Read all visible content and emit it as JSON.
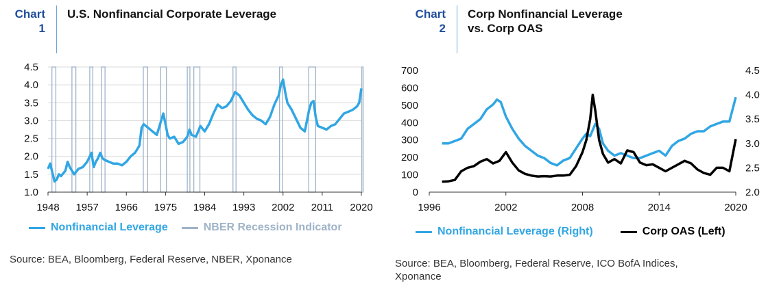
{
  "chart1": {
    "label_line1": "Chart",
    "label_line2": "1",
    "title": "U.S. Nonfinancial Corporate Leverage",
    "legend": [
      {
        "name": "Nonfinancial Leverage",
        "color": "#31a6e4"
      },
      {
        "name": "NBER Recession Indicator",
        "color": "#9fb3c8"
      }
    ],
    "source": "Source: BEA, Bloomberg, Federal Reserve, NBER, Xponance"
  },
  "chart2": {
    "label_line1": "Chart",
    "label_line2": "2",
    "title_line1": "Corp Nonfinancial Leverage",
    "title_line2": "vs. Corp OAS",
    "legend": [
      {
        "name": "Nonfinancial Leverage (Right)",
        "color": "#31a6e4"
      },
      {
        "name": "Corp OAS (Left)",
        "color": "#000000"
      }
    ],
    "source_line1": "Source: BEA, Bloomberg, Federal Reserve, ICO BofA Indices,",
    "source_line2": "Xponance"
  },
  "chart_data": [
    {
      "type": "line",
      "title": "U.S. Nonfinancial Corporate Leverage",
      "xlim": [
        1948,
        2020
      ],
      "xticks": [
        1948,
        1957,
        1966,
        1975,
        1984,
        1993,
        2002,
        2011,
        2020
      ],
      "ylim": [
        1.0,
        4.5
      ],
      "yticks": [
        1.0,
        1.5,
        2.0,
        2.5,
        3.0,
        3.5,
        4.0,
        4.5
      ],
      "grid": true,
      "legend_position": "bottom",
      "recessions": [
        [
          1948.9,
          1949.8
        ],
        [
          1953.5,
          1954.4
        ],
        [
          1957.6,
          1958.3
        ],
        [
          1960.3,
          1961.1
        ],
        [
          1969.9,
          1970.9
        ],
        [
          1973.9,
          1975.2
        ],
        [
          1980.0,
          1980.6
        ],
        [
          1981.5,
          1982.9
        ],
        [
          1990.5,
          1991.2
        ],
        [
          2001.2,
          2001.9
        ],
        [
          2007.9,
          2009.5
        ],
        [
          2020.1,
          2020.4
        ]
      ],
      "series": [
        {
          "name": "Nonfinancial Leverage",
          "color": "#31a6e4",
          "x": [
            1948,
            1948.5,
            1949,
            1949.5,
            1950,
            1950.5,
            1951,
            1952,
            1952.5,
            1953,
            1953.5,
            1954,
            1955,
            1956,
            1957,
            1958,
            1958.5,
            1959,
            1959.5,
            1960,
            1960.5,
            1961,
            1962,
            1963,
            1964,
            1965,
            1966,
            1967,
            1968,
            1969,
            1969.5,
            1970,
            1970.5,
            1971,
            1972,
            1973,
            1974,
            1974.5,
            1975,
            1975.5,
            1976,
            1977,
            1978,
            1979,
            1980,
            1980.5,
            1981,
            1982,
            1982.5,
            1983,
            1984,
            1985,
            1986,
            1987,
            1988,
            1989,
            1990,
            1991,
            1992,
            1993,
            1994,
            1995,
            1996,
            1997,
            1998,
            1999,
            2000,
            2001,
            2001.5,
            2002,
            2002.5,
            2003,
            2004,
            2005,
            2006,
            2007,
            2008,
            2008.5,
            2009,
            2009.5,
            2010,
            2011,
            2012,
            2013,
            2014,
            2015,
            2016,
            2017,
            2018,
            2019,
            2019.5,
            2020
          ],
          "y": [
            1.65,
            1.8,
            1.55,
            1.3,
            1.35,
            1.5,
            1.45,
            1.6,
            1.85,
            1.7,
            1.6,
            1.5,
            1.65,
            1.7,
            1.85,
            2.1,
            1.7,
            1.85,
            1.95,
            2.1,
            1.95,
            1.9,
            1.85,
            1.8,
            1.8,
            1.75,
            1.85,
            2.0,
            2.1,
            2.3,
            2.8,
            2.9,
            2.85,
            2.8,
            2.7,
            2.6,
            3.0,
            3.2,
            2.9,
            2.6,
            2.5,
            2.55,
            2.35,
            2.4,
            2.55,
            2.75,
            2.6,
            2.55,
            2.7,
            2.85,
            2.7,
            2.9,
            3.2,
            3.45,
            3.35,
            3.4,
            3.55,
            3.8,
            3.7,
            3.5,
            3.3,
            3.15,
            3.05,
            3.0,
            2.9,
            3.1,
            3.45,
            3.7,
            4.0,
            4.15,
            3.8,
            3.5,
            3.3,
            3.05,
            2.8,
            2.7,
            3.3,
            3.5,
            3.55,
            3.1,
            2.85,
            2.8,
            2.75,
            2.85,
            2.9,
            3.05,
            3.2,
            3.25,
            3.3,
            3.4,
            3.5,
            3.9
          ]
        }
      ]
    },
    {
      "type": "line",
      "title": "Corp Nonfinancial Leverage vs. Corp OAS",
      "xlim": [
        1996,
        2020
      ],
      "xticks": [
        1996,
        2002,
        2008,
        2014,
        2020
      ],
      "ylim_left": [
        0,
        700
      ],
      "yticks_left": [
        0,
        100,
        200,
        300,
        400,
        500,
        600,
        700
      ],
      "ylim_right": [
        2.0,
        4.5
      ],
      "yticks_right": [
        2.0,
        2.5,
        3.0,
        3.5,
        4.0,
        4.5
      ],
      "grid": false,
      "legend_position": "bottom",
      "series": [
        {
          "name": "Nonfinancial Leverage (Right)",
          "axis": "right",
          "color": "#31a6e4",
          "x": [
            1997,
            1997.5,
            1998,
            1998.5,
            1999,
            1999.5,
            2000,
            2000.5,
            2001,
            2001.3,
            2001.6,
            2002,
            2002.5,
            2003,
            2003.5,
            2004,
            2004.5,
            2005,
            2005.5,
            2006,
            2006.5,
            2007,
            2007.5,
            2008,
            2008.3,
            2008.6,
            2009,
            2009.3,
            2009.6,
            2010,
            2010.5,
            2011,
            2011.5,
            2012,
            2012.5,
            2013,
            2013.5,
            2014,
            2014.5,
            2015,
            2015.5,
            2016,
            2016.5,
            2017,
            2017.5,
            2018,
            2018.5,
            2019,
            2019.5,
            2020
          ],
          "y": [
            3.0,
            3.0,
            3.05,
            3.1,
            3.3,
            3.4,
            3.5,
            3.7,
            3.8,
            3.9,
            3.85,
            3.55,
            3.3,
            3.1,
            2.95,
            2.85,
            2.75,
            2.7,
            2.6,
            2.55,
            2.65,
            2.7,
            2.9,
            3.1,
            3.2,
            3.15,
            3.4,
            3.3,
            3.0,
            2.85,
            2.75,
            2.8,
            2.75,
            2.7,
            2.7,
            2.75,
            2.8,
            2.85,
            2.75,
            2.95,
            3.05,
            3.1,
            3.2,
            3.25,
            3.25,
            3.35,
            3.4,
            3.45,
            3.45,
            3.95
          ]
        },
        {
          "name": "Corp OAS (Left)",
          "axis": "left",
          "color": "#000000",
          "x": [
            1997,
            1997.5,
            1998,
            1998.5,
            1999,
            1999.5,
            2000,
            2000.5,
            2001,
            2001.5,
            2002,
            2002.5,
            2003,
            2003.5,
            2004,
            2004.5,
            2005,
            2005.5,
            2006,
            2006.5,
            2007,
            2007.5,
            2008,
            2008.3,
            2008.6,
            2008.8,
            2009,
            2009.3,
            2009.6,
            2010,
            2010.5,
            2011,
            2011.5,
            2012,
            2012.5,
            2013,
            2013.5,
            2014,
            2014.5,
            2015,
            2015.5,
            2016,
            2016.5,
            2017,
            2017.5,
            2018,
            2018.5,
            2019,
            2019.5,
            2020
          ],
          "y": [
            60,
            62,
            70,
            120,
            140,
            150,
            175,
            190,
            165,
            180,
            230,
            170,
            125,
            105,
            95,
            90,
            92,
            90,
            95,
            95,
            100,
            150,
            230,
            300,
            420,
            560,
            470,
            300,
            220,
            170,
            190,
            165,
            240,
            230,
            170,
            155,
            160,
            140,
            120,
            140,
            160,
            180,
            165,
            130,
            110,
            100,
            140,
            140,
            120,
            305
          ]
        }
      ]
    }
  ]
}
